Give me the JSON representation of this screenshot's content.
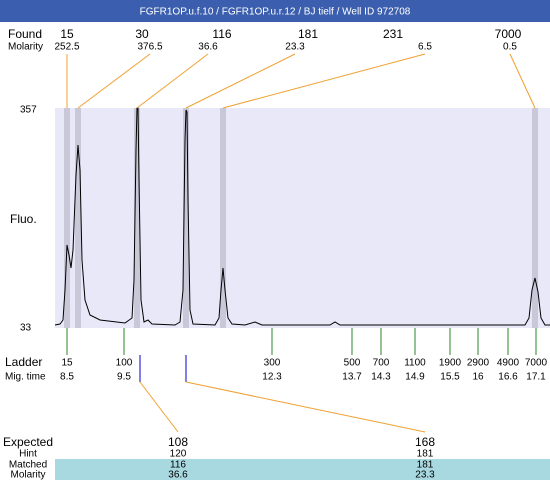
{
  "title": "FGFR1OP.u.f.10 / FGFR1OP.u.r.12 / BJ tielf / Well ID 972708",
  "found": {
    "label": "Found",
    "sublabel": "Molarity",
    "peaks": [
      {
        "size": 15,
        "molarity": 252.5
      },
      {
        "size": 30,
        "molarity": 376.5
      },
      {
        "size": 116,
        "molarity": 36.6
      },
      {
        "size": 181,
        "molarity": 23.3
      },
      {
        "size": 231,
        "molarity": 6.5
      },
      {
        "size": 7000,
        "molarity": 0.5
      }
    ]
  },
  "plot": {
    "y_label": "Fluo.",
    "y_max": 357,
    "y_min": 33
  },
  "ladder": {
    "label": "Ladder",
    "sublabel": "Mig. time",
    "points": [
      {
        "size": 15,
        "time": 8.5
      },
      {
        "size": 100,
        "time": 9.5
      },
      {
        "size": 300,
        "time": 12.3
      },
      {
        "size": 500,
        "time": 13.7
      },
      {
        "size": 700,
        "time": 14.3
      },
      {
        "size": 1100,
        "time": 14.9
      },
      {
        "size": 1900,
        "time": 15.5
      },
      {
        "size": 2900,
        "time": 16
      },
      {
        "size": 4900,
        "time": 16.6
      },
      {
        "size": 7000,
        "time": 17.1
      }
    ]
  },
  "expected": {
    "labels": [
      "Expected",
      "Hint",
      "Matched",
      "Molarity"
    ],
    "columns": [
      {
        "expected": 108,
        "hint": 120,
        "matched": 116,
        "molarity": 36.6
      },
      {
        "expected": 168,
        "hint": 181,
        "matched": 181,
        "molarity": 23.3
      }
    ]
  }
}
